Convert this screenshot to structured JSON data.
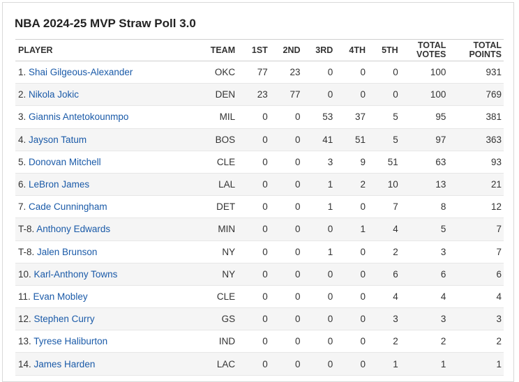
{
  "title": "NBA 2024-25 MVP Straw Poll 3.0",
  "colors": {
    "link": "#1a5aa8",
    "stripe": "#f5f5f5"
  },
  "columns": {
    "player": "PLAYER",
    "team": "TEAM",
    "first": "1ST",
    "second": "2ND",
    "third": "3RD",
    "fourth": "4TH",
    "fifth": "5TH",
    "total_votes_1": "TOTAL",
    "total_votes_2": "VOTES",
    "total_points_1": "TOTAL",
    "total_points_2": "POINTS"
  },
  "rows": [
    {
      "rank": "1.",
      "name": "Shai Gilgeous-Alexander",
      "team": "OKC",
      "v1": "77",
      "v2": "23",
      "v3": "0",
      "v4": "0",
      "v5": "0",
      "total_votes": "100",
      "total_points": "931"
    },
    {
      "rank": "2.",
      "name": "Nikola Jokic",
      "team": "DEN",
      "v1": "23",
      "v2": "77",
      "v3": "0",
      "v4": "0",
      "v5": "0",
      "total_votes": "100",
      "total_points": "769"
    },
    {
      "rank": "3.",
      "name": "Giannis Antetokounmpo",
      "team": "MIL",
      "v1": "0",
      "v2": "0",
      "v3": "53",
      "v4": "37",
      "v5": "5",
      "total_votes": "95",
      "total_points": "381"
    },
    {
      "rank": "4.",
      "name": "Jayson Tatum",
      "team": "BOS",
      "v1": "0",
      "v2": "0",
      "v3": "41",
      "v4": "51",
      "v5": "5",
      "total_votes": "97",
      "total_points": "363"
    },
    {
      "rank": "5.",
      "name": "Donovan Mitchell",
      "team": "CLE",
      "v1": "0",
      "v2": "0",
      "v3": "3",
      "v4": "9",
      "v5": "51",
      "total_votes": "63",
      "total_points": "93"
    },
    {
      "rank": "6.",
      "name": "LeBron James",
      "team": "LAL",
      "v1": "0",
      "v2": "0",
      "v3": "1",
      "v4": "2",
      "v5": "10",
      "total_votes": "13",
      "total_points": "21"
    },
    {
      "rank": "7.",
      "name": "Cade Cunningham",
      "team": "DET",
      "v1": "0",
      "v2": "0",
      "v3": "1",
      "v4": "0",
      "v5": "7",
      "total_votes": "8",
      "total_points": "12"
    },
    {
      "rank": "T-8.",
      "name": "Anthony Edwards",
      "team": "MIN",
      "v1": "0",
      "v2": "0",
      "v3": "0",
      "v4": "1",
      "v5": "4",
      "total_votes": "5",
      "total_points": "7"
    },
    {
      "rank": "T-8.",
      "name": "Jalen Brunson",
      "team": "NY",
      "v1": "0",
      "v2": "0",
      "v3": "1",
      "v4": "0",
      "v5": "2",
      "total_votes": "3",
      "total_points": "7"
    },
    {
      "rank": "10.",
      "name": "Karl-Anthony Towns",
      "team": "NY",
      "v1": "0",
      "v2": "0",
      "v3": "0",
      "v4": "0",
      "v5": "6",
      "total_votes": "6",
      "total_points": "6"
    },
    {
      "rank": "11.",
      "name": "Evan Mobley",
      "team": "CLE",
      "v1": "0",
      "v2": "0",
      "v3": "0",
      "v4": "0",
      "v5": "4",
      "total_votes": "4",
      "total_points": "4"
    },
    {
      "rank": "12.",
      "name": "Stephen Curry",
      "team": "GS",
      "v1": "0",
      "v2": "0",
      "v3": "0",
      "v4": "0",
      "v5": "3",
      "total_votes": "3",
      "total_points": "3"
    },
    {
      "rank": "13.",
      "name": "Tyrese Haliburton",
      "team": "IND",
      "v1": "0",
      "v2": "0",
      "v3": "0",
      "v4": "0",
      "v5": "2",
      "total_votes": "2",
      "total_points": "2"
    },
    {
      "rank": "14.",
      "name": "James Harden",
      "team": "LAC",
      "v1": "0",
      "v2": "0",
      "v3": "0",
      "v4": "0",
      "v5": "1",
      "total_votes": "1",
      "total_points": "1"
    }
  ]
}
